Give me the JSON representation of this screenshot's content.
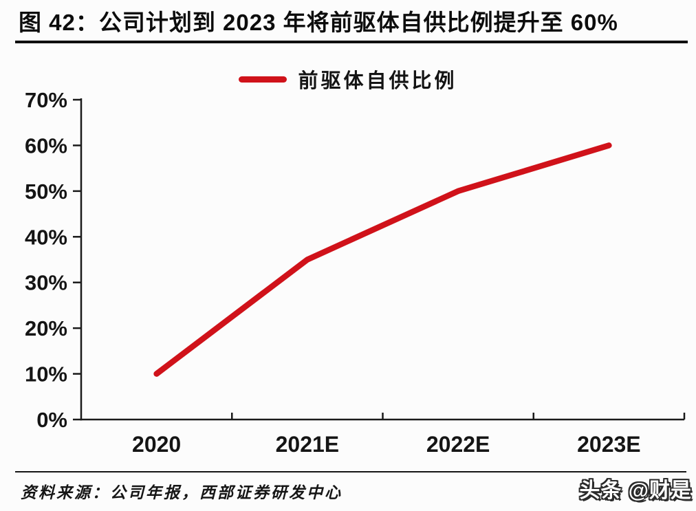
{
  "header": {
    "title": "图 42：公司计划到 2023 年将前驱体自供比例提升至 60%"
  },
  "legend": {
    "label": "前驱体自供比例"
  },
  "chart_data": {
    "type": "line",
    "title": "图 42：公司计划到 2023 年将前驱体自供比例提升至 60%",
    "categories": [
      "2020",
      "2021E",
      "2022E",
      "2023E"
    ],
    "series": [
      {
        "name": "前驱体自供比例",
        "values": [
          10,
          35,
          50,
          60
        ]
      }
    ],
    "xlabel": "",
    "ylabel": "",
    "ylim": [
      0,
      70
    ],
    "ytick_step": 10,
    "ytick_labels": [
      "0%",
      "10%",
      "20%",
      "30%",
      "40%",
      "50%",
      "60%",
      "70%"
    ],
    "grid": false,
    "legend_position": "top-center",
    "line_color": "#d0121a",
    "axis_color": "#1a1a1a"
  },
  "footer": {
    "source": "资料来源：公司年报，西部证券研发中心"
  },
  "watermark": {
    "text": "头条 @财是"
  }
}
